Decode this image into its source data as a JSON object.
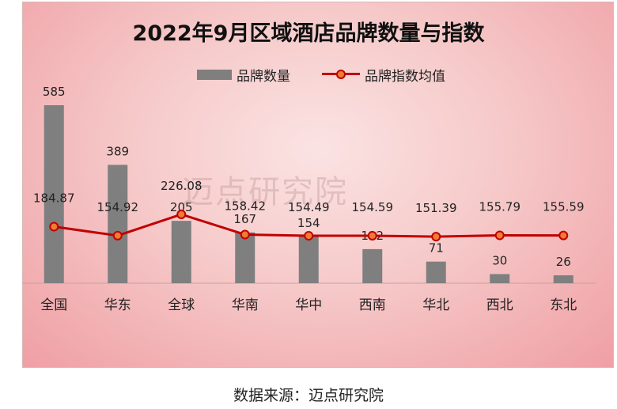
{
  "chart_data": {
    "type": "bar",
    "title": "2022年9月区域酒店品牌数量与指数",
    "categories": [
      "全国",
      "华东",
      "全球",
      "华南",
      "华中",
      "西南",
      "华北",
      "西北",
      "东北"
    ],
    "series": [
      {
        "name": "品牌数量",
        "type": "bar",
        "values": [
          585,
          389,
          205,
          167,
          154,
          112,
          71,
          30,
          26
        ]
      },
      {
        "name": "品牌指数均值",
        "type": "line",
        "values": [
          184.87,
          154.92,
          226.08,
          158.42,
          154.49,
          154.59,
          151.39,
          155.79,
          155.59
        ]
      }
    ],
    "legend_position": "top",
    "grid": false,
    "colors": {
      "bar": "#7f7f7f",
      "line": "#c00000",
      "marker": "#ed7d31"
    }
  },
  "watermark": "迈点研究院",
  "source_note": "数据来源：迈点研究院"
}
